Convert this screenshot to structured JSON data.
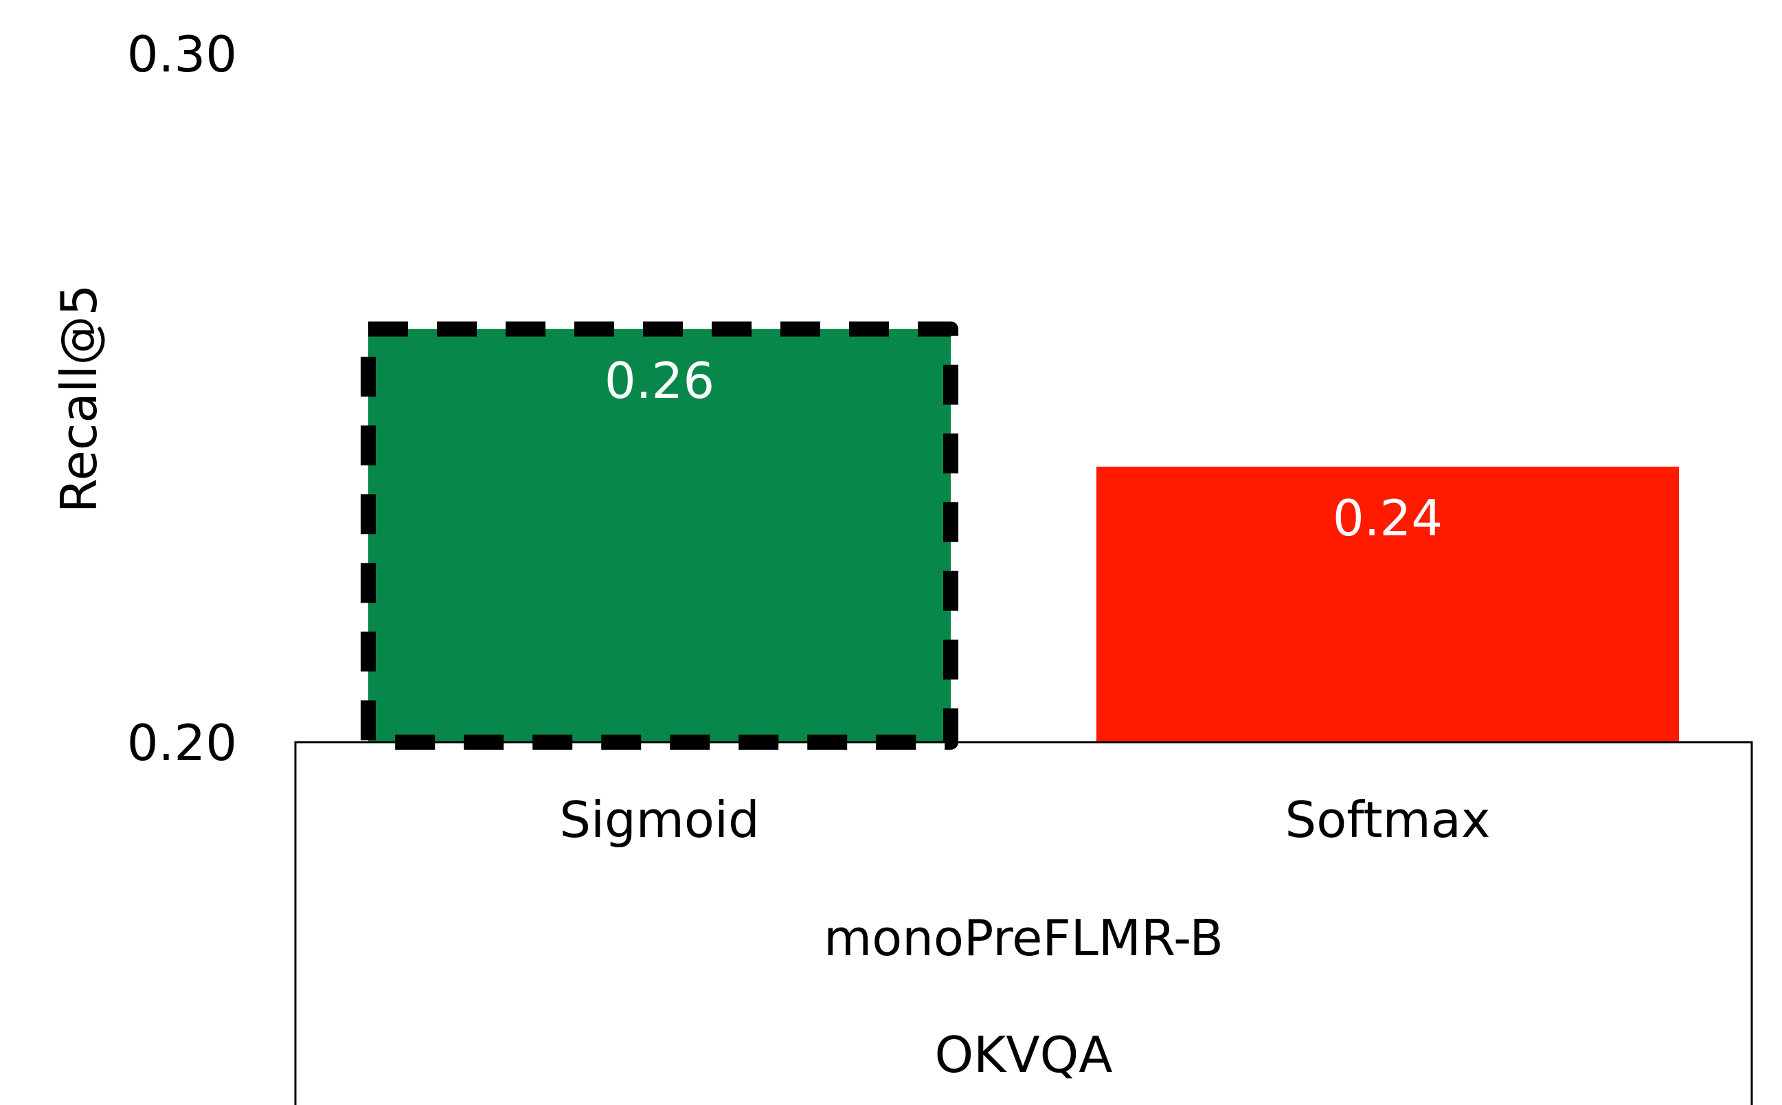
{
  "chart_data": {
    "type": "bar",
    "categories": [
      "Sigmoid",
      "Softmax"
    ],
    "values": [
      0.26,
      0.24
    ],
    "value_labels": [
      "0.26",
      "0.24"
    ],
    "colors": [
      "#07884A",
      "#FF1A00"
    ],
    "highlight": "Sigmoid",
    "highlight_style": "dashed-black-outline",
    "ylabel": "Recall@5",
    "ylim": [
      0.2,
      0.3
    ],
    "yticks": [
      0.2,
      0.3
    ],
    "ytick_labels": [
      "0.20",
      "0.30"
    ],
    "group_labels": [
      "monoPreFLMR-B",
      "OKVQA"
    ],
    "grid": false
  }
}
